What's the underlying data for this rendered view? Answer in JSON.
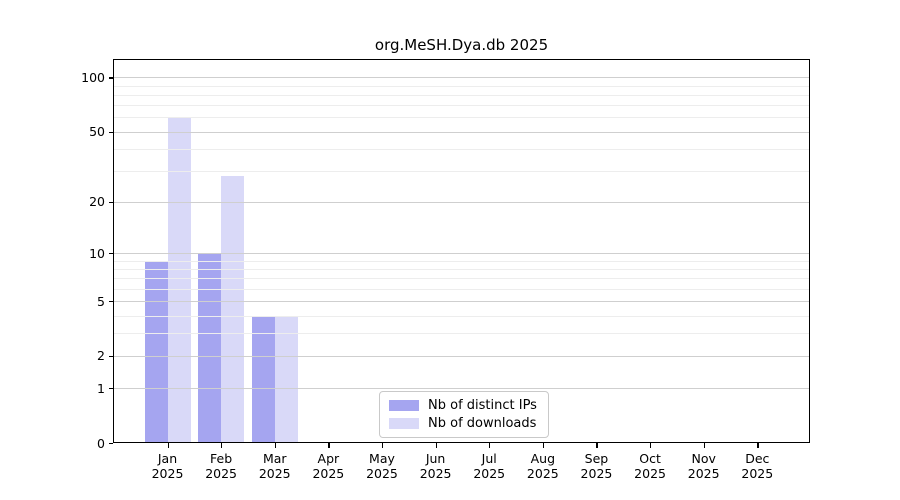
{
  "chart_data": {
    "type": "bar",
    "title": "org.MeSH.Dya.db 2025",
    "categories": [
      "Jan 2025",
      "Feb 2025",
      "Mar 2025",
      "Apr 2025",
      "May 2025",
      "Jun 2025",
      "Jul 2025",
      "Aug 2025",
      "Sep 2025",
      "Oct 2025",
      "Nov 2025",
      "Dec 2025"
    ],
    "series": [
      {
        "name": "Nb of distinct IPs",
        "color": "#a5a5f0",
        "values": [
          9,
          10,
          4,
          0,
          0,
          0,
          0,
          0,
          0,
          0,
          0,
          0
        ]
      },
      {
        "name": "Nb of downloads",
        "color": "#d9d9f8",
        "values": [
          60,
          28,
          4,
          0,
          0,
          0,
          0,
          0,
          0,
          0,
          0,
          0
        ]
      }
    ],
    "xlabel": "",
    "ylabel": "",
    "yscale": "log1p",
    "ylim": [
      0,
      102
    ],
    "y_tick_values": [
      0,
      1,
      2,
      5,
      10,
      20,
      50,
      100
    ],
    "y_tick_labels": [
      "0",
      "1",
      "2",
      "5",
      "10",
      "20",
      "50",
      "100"
    ],
    "y_minor_gridline_values": [
      3,
      4,
      6,
      7,
      8,
      9,
      30,
      40,
      60,
      70,
      80,
      90
    ],
    "grid": "horizontal",
    "legend_position": "lower center"
  },
  "colors": {
    "background": "#ffffff",
    "bar_distinct_ips": "#a5a5f0",
    "bar_downloads": "#d9d9f8",
    "grid_major": "#cfcfcf",
    "grid_minor": "#ededed",
    "axis": "#000000",
    "legend_border": "#c9c9c9",
    "text": "#000000"
  }
}
